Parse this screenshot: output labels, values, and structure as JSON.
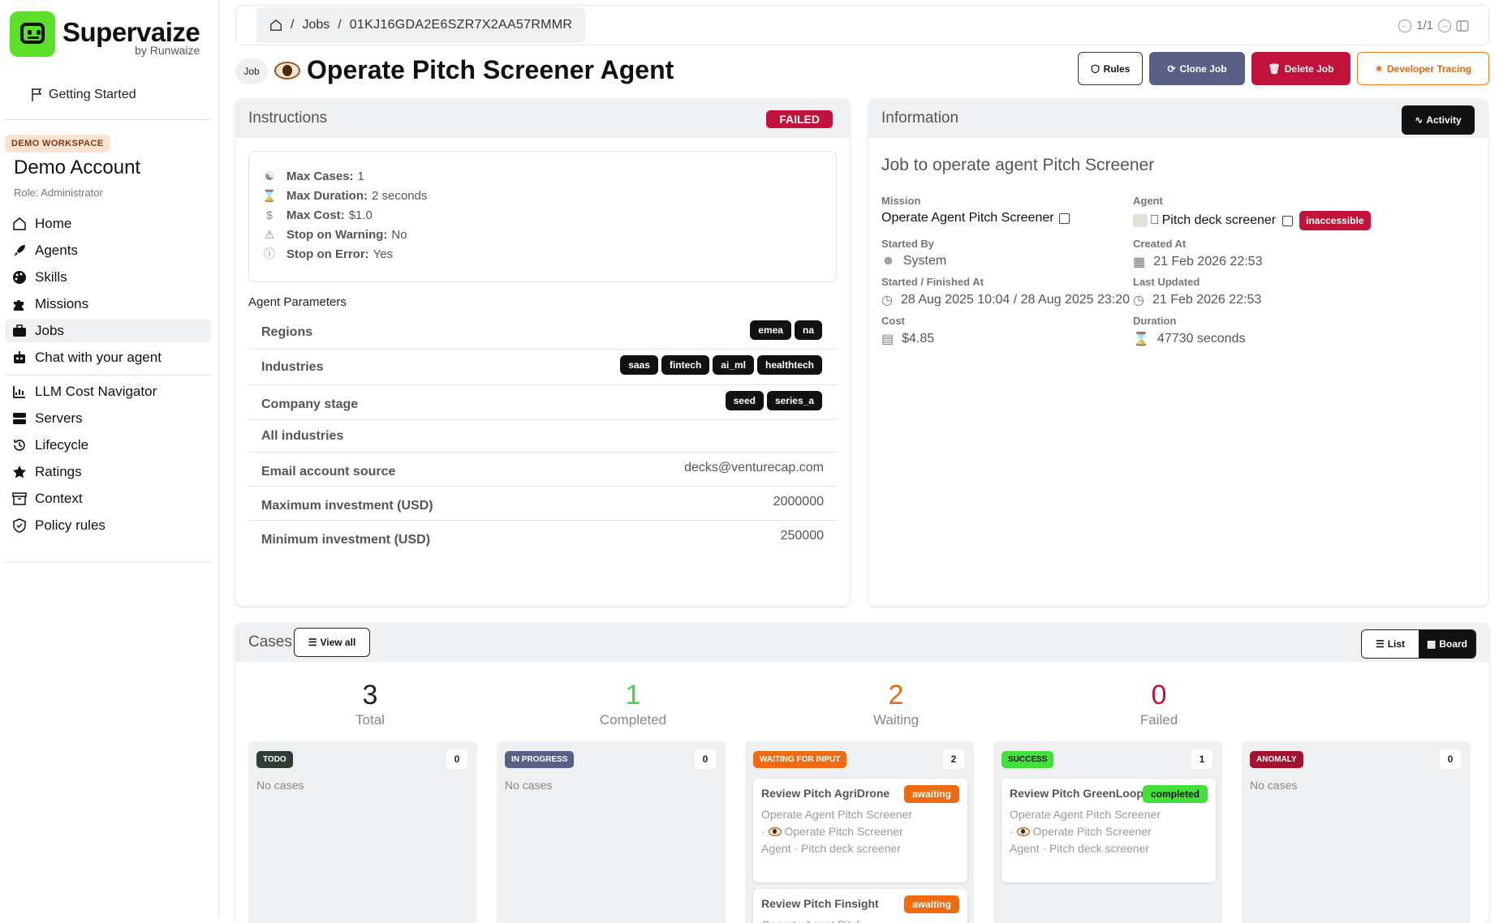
{
  "brand": {
    "title": "Supervaize",
    "subtitle": "by Runwaize"
  },
  "sidebar": {
    "getting_started": "Getting Started",
    "workspace_badge": "DEMO WORKSPACE",
    "account_name": "Demo Account",
    "role": "Role: Administrator",
    "items": [
      {
        "label": "Home",
        "icon": "home-icon"
      },
      {
        "label": "Agents",
        "icon": "rocket-icon"
      },
      {
        "label": "Skills",
        "icon": "palette-icon"
      },
      {
        "label": "Missions",
        "icon": "puzzle-icon"
      },
      {
        "label": "Jobs",
        "icon": "briefcase-icon",
        "active": true
      },
      {
        "label": "Chat with your agent",
        "icon": "robot-icon"
      }
    ],
    "items2": [
      {
        "label": "LLM Cost Navigator",
        "icon": "chart-icon"
      },
      {
        "label": "Servers",
        "icon": "server-icon"
      },
      {
        "label": "Lifecycle",
        "icon": "history-icon"
      },
      {
        "label": "Ratings",
        "icon": "star-icon"
      },
      {
        "label": "Context",
        "icon": "archive-icon"
      },
      {
        "label": "Policy rules",
        "icon": "shield-icon"
      }
    ]
  },
  "breadcrumb": {
    "home_icon": "home-icon",
    "jobs": "Jobs",
    "id": "01KJ16GDA2E6SZR7X2AA57RMMR",
    "sep": "/"
  },
  "pager": {
    "text": "1/1"
  },
  "header": {
    "chip": "Job",
    "title": "Operate Pitch Screener Agent"
  },
  "actions": {
    "rules": "Rules",
    "clone": "Clone Job",
    "delete": "Delete Job",
    "dev": "Developer Tracing"
  },
  "instructions": {
    "title": "Instructions",
    "status": "FAILED",
    "settings": [
      {
        "label": "Max Cases:",
        "value": "1",
        "icon": "cases-icon"
      },
      {
        "label": "Max Duration:",
        "value": "2 seconds",
        "icon": "hourglass-icon"
      },
      {
        "label": "Max Cost:",
        "value": "$1.0",
        "icon": "dollar-icon"
      },
      {
        "label": "Stop on Warning:",
        "value": "No",
        "icon": "warning-icon"
      },
      {
        "label": "Stop on Error:",
        "value": "Yes",
        "icon": "error-icon"
      }
    ],
    "params_title": "Agent Parameters",
    "params": [
      {
        "label": "Regions",
        "tags": [
          "emea",
          "na"
        ]
      },
      {
        "label": "Industries",
        "tags": [
          "saas",
          "fintech",
          "ai_ml",
          "healthtech"
        ]
      },
      {
        "label": "Company stage",
        "tags": [
          "seed",
          "series_a"
        ]
      },
      {
        "label": "All industries",
        "value": ""
      },
      {
        "label": "Email account source",
        "value": "decks@venturecap.com"
      },
      {
        "label": "Maximum investment (USD)",
        "value": "2000000"
      },
      {
        "label": "Minimum investment (USD)",
        "value": "250000"
      }
    ]
  },
  "information": {
    "title": "Information",
    "activity": "Activity",
    "description": "Job to operate agent Pitch Screener",
    "mission_label": "Mission",
    "mission": "Operate Agent Pitch Screener",
    "agent_label": "Agent",
    "agent": "Pitch deck screener",
    "agent_status": "inaccessible",
    "started_by_label": "Started By",
    "started_by": "System",
    "created_label": "Created At",
    "created": "21 Feb 2026 22:53",
    "started_label": "Started / Finished At",
    "started": "28 Aug 2025 10:04 / 28 Aug 2025 23:20",
    "updated_label": "Last Updated",
    "updated": "21 Feb 2026 22:53",
    "cost_label": "Cost",
    "cost": "$4.85",
    "duration_label": "Duration",
    "duration": "47730 seconds"
  },
  "cases": {
    "title": "Cases",
    "view_all": "View all",
    "list": "List",
    "board": "Board",
    "stats": [
      {
        "num": "3",
        "label": "Total",
        "color": "#222222"
      },
      {
        "num": "1",
        "label": "Completed",
        "color": "#3ddc3d"
      },
      {
        "num": "2",
        "label": "Waiting",
        "color": "#f06a10"
      },
      {
        "num": "0",
        "label": "Failed",
        "color": "#c0123a"
      }
    ],
    "columns": [
      {
        "label": "TODO",
        "count": "0",
        "color": "#2f3b33",
        "empty": "No cases"
      },
      {
        "label": "IN PROGRESS",
        "count": "0",
        "color": "#5a5f86",
        "empty": "No cases"
      },
      {
        "label": "WAITING FOR INPUT",
        "count": "2",
        "color": "#f06a10",
        "empty": ""
      },
      {
        "label": "SUCCESS",
        "count": "1",
        "color": "#44e03a",
        "empty": ""
      },
      {
        "label": "ANOMALY",
        "count": "0",
        "color": "#a3122f",
        "empty": "No cases"
      }
    ],
    "cards": [
      {
        "title": "Review Pitch AgriDrone",
        "status": "awaiting",
        "d1": "Operate Agent Pitch Screener · ",
        "d2": " Operate Pitch Screener Agent · Pitch deck screener"
      },
      {
        "title": "Review Pitch Finsight",
        "status": "awaiting",
        "d1": "Operate Agent Pitch",
        "d2": ""
      },
      {
        "title": "Review Pitch GreenLoop",
        "status": "completed",
        "d1": "Operate Agent Pitch Screener · ",
        "d2": " Operate Pitch Screener Agent · Pitch deck screener"
      }
    ]
  }
}
